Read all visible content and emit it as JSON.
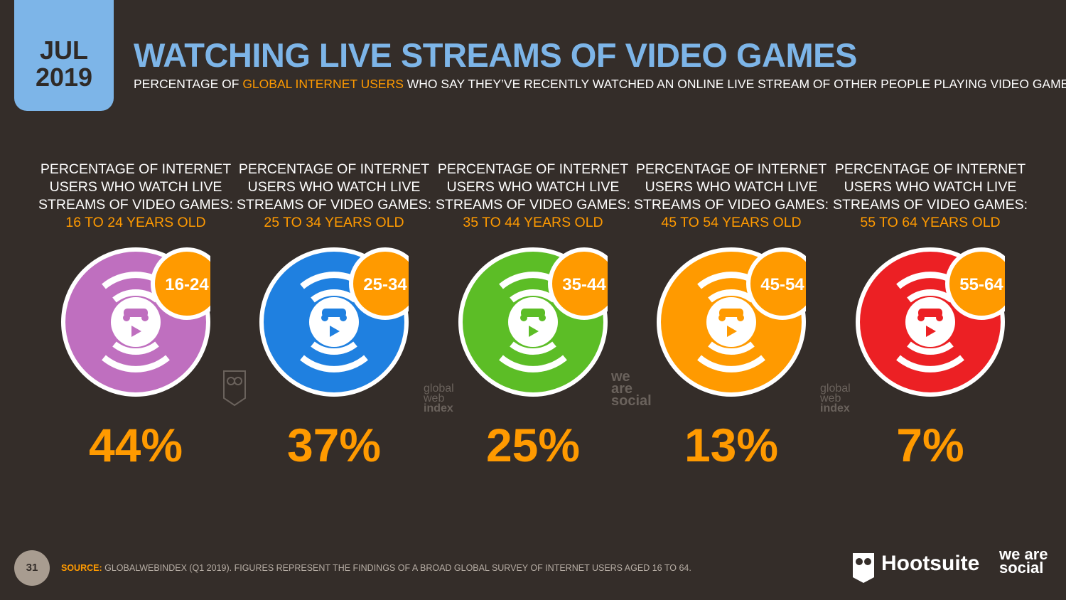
{
  "header": {
    "month": "JUL",
    "year": "2019",
    "title": "WATCHING LIVE STREAMS OF VIDEO GAMES",
    "subtitle_pre": "PERCENTAGE OF ",
    "subtitle_highlight": "GLOBAL INTERNET USERS",
    "subtitle_post": " WHO SAY THEY’VE RECENTLY WATCHED AN ONLINE LIVE STREAM OF OTHER PEOPLE PLAYING VIDEO GAMES"
  },
  "column_label": "PERCENTAGE OF INTERNET USERS WHO WATCH LIVE STREAMS OF VIDEO GAMES:",
  "chart_data": {
    "type": "table",
    "categories": [
      "16-24",
      "25-34",
      "35-44",
      "45-54",
      "55-64"
    ],
    "age_labels": [
      "16 TO 24 YEARS OLD",
      "25 TO 34 YEARS OLD",
      "35 TO 44 YEARS OLD",
      "45 TO 54 YEARS OLD",
      "55 TO 64 YEARS OLD"
    ],
    "values": [
      44,
      37,
      25,
      13,
      7
    ],
    "value_labels": [
      "44%",
      "37%",
      "25%",
      "13%",
      "7%"
    ],
    "colors": [
      "#bf6fbf",
      "#1f80e0",
      "#5cbd26",
      "#ff9a00",
      "#ec2024"
    ],
    "badge_color": "#ff9a00"
  },
  "watermarks": [
    "global web index",
    "we are social"
  ],
  "footer": {
    "page": "31",
    "source_label": "SOURCE:",
    "source_text": " GLOBALWEBINDEX (Q1 2019). FIGURES REPRESENT THE FINDINGS OF A BROAD GLOBAL SURVEY OF INTERNET USERS AGED 16 TO 64.",
    "brand1": "Hootsuite",
    "brand2": "we are social"
  }
}
